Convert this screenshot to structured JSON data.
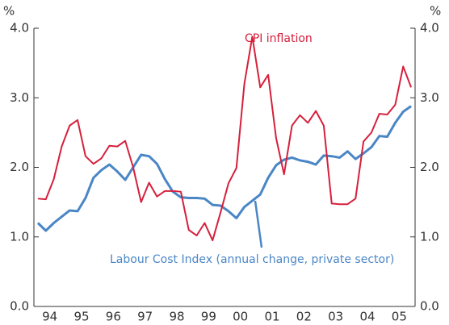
{
  "chart_data": {
    "type": "line",
    "y_unit_left": "%",
    "y_unit_right": "%",
    "annotations": [
      "CPI inflation",
      "Labour Cost Index (annual change, private sector)"
    ],
    "x": [
      1994.125,
      1994.375,
      1994.625,
      1994.875,
      1995.125,
      1995.375,
      1995.625,
      1995.875,
      1996.125,
      1996.375,
      1996.625,
      1996.875,
      1997.125,
      1997.375,
      1997.625,
      1997.875,
      1998.125,
      1998.375,
      1998.625,
      1998.875,
      1999.125,
      1999.375,
      1999.625,
      1999.875,
      2000.125,
      2000.375,
      2000.625,
      2000.875,
      2001.125,
      2001.375,
      2001.625,
      2001.875,
      2002.125,
      2002.375,
      2002.625,
      2002.875,
      2003.125,
      2003.375,
      2003.625,
      2003.875,
      2004.125,
      2004.375,
      2004.625,
      2004.875,
      2005.125,
      2005.375,
      2005.625,
      2005.875
    ],
    "series": [
      {
        "name": "CPI inflation",
        "color": "#d6203c",
        "values": [
          1.55,
          1.54,
          1.83,
          2.3,
          2.6,
          2.68,
          2.16,
          2.05,
          2.13,
          2.31,
          2.3,
          2.38,
          2.0,
          1.5,
          1.78,
          1.58,
          1.66,
          1.66,
          1.65,
          1.1,
          1.02,
          1.2,
          0.95,
          1.35,
          1.77,
          1.99,
          3.2,
          3.88,
          3.15,
          3.33,
          2.42,
          1.9,
          2.6,
          2.75,
          2.64,
          2.81,
          2.6,
          1.48,
          1.47,
          1.47,
          1.55,
          2.37,
          2.5,
          2.77,
          2.76,
          2.9,
          3.45,
          3.15
        ]
      },
      {
        "name": "Labour Cost Index (annual change, private sector)",
        "color": "#4a86c6",
        "values": [
          1.2,
          1.09,
          1.2,
          1.29,
          1.38,
          1.37,
          1.56,
          1.85,
          1.96,
          2.04,
          1.94,
          1.82,
          2.0,
          2.18,
          2.16,
          2.05,
          1.83,
          1.65,
          1.57,
          1.56,
          1.56,
          1.55,
          1.46,
          1.45,
          1.37,
          1.27,
          1.43,
          1.52,
          1.61,
          1.85,
          2.03,
          2.11,
          2.14,
          2.1,
          2.08,
          2.04,
          2.17,
          2.16,
          2.14,
          2.23,
          2.12,
          2.2,
          2.29,
          2.45,
          2.44,
          2.64,
          2.8,
          2.88
        ]
      }
    ],
    "xlim": [
      1994,
      2006
    ],
    "xticks": [
      {
        "value": 1994.5,
        "label": "94"
      },
      {
        "value": 1995.5,
        "label": "95"
      },
      {
        "value": 1996.5,
        "label": "96"
      },
      {
        "value": 1997.5,
        "label": "97"
      },
      {
        "value": 1998.5,
        "label": "98"
      },
      {
        "value": 1999.5,
        "label": "99"
      },
      {
        "value": 2000.5,
        "label": "00"
      },
      {
        "value": 2001.5,
        "label": "01"
      },
      {
        "value": 2002.5,
        "label": "02"
      },
      {
        "value": 2003.5,
        "label": "03"
      },
      {
        "value": 2004.5,
        "label": "04"
      },
      {
        "value": 2005.5,
        "label": "05"
      }
    ],
    "ylim": [
      0,
      4
    ],
    "yticks": [
      {
        "value": 0,
        "label": "0.0"
      },
      {
        "value": 1,
        "label": "1.0"
      },
      {
        "value": 2,
        "label": "2.0"
      },
      {
        "value": 3,
        "label": "3.0"
      },
      {
        "value": 4,
        "label": "4.0"
      }
    ],
    "grid": false
  }
}
